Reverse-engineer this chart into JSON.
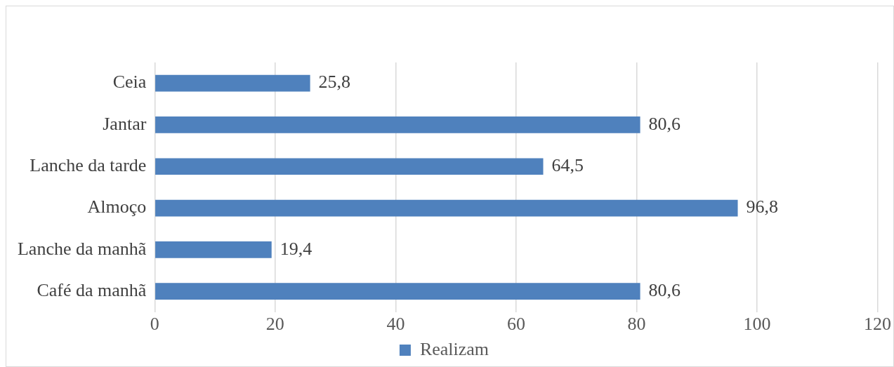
{
  "chart_data": {
    "type": "bar",
    "orientation": "horizontal",
    "categories": [
      "Ceia",
      "Jantar",
      "Lanche da tarde",
      "Almoço",
      "Lanche da manhã",
      "Café da manhã"
    ],
    "series": [
      {
        "name": "Realizam",
        "color": "#4f81bd",
        "values": [
          25.8,
          80.6,
          64.5,
          96.8,
          19.4,
          80.6
        ],
        "value_labels": [
          "25,8",
          "80,6",
          "64,5",
          "96,8",
          "19,4",
          "80,6"
        ]
      }
    ],
    "xlim": [
      0,
      120
    ],
    "xticks": [
      0,
      20,
      40,
      60,
      80,
      100,
      120
    ],
    "grid": "x",
    "legend": "bottom"
  }
}
